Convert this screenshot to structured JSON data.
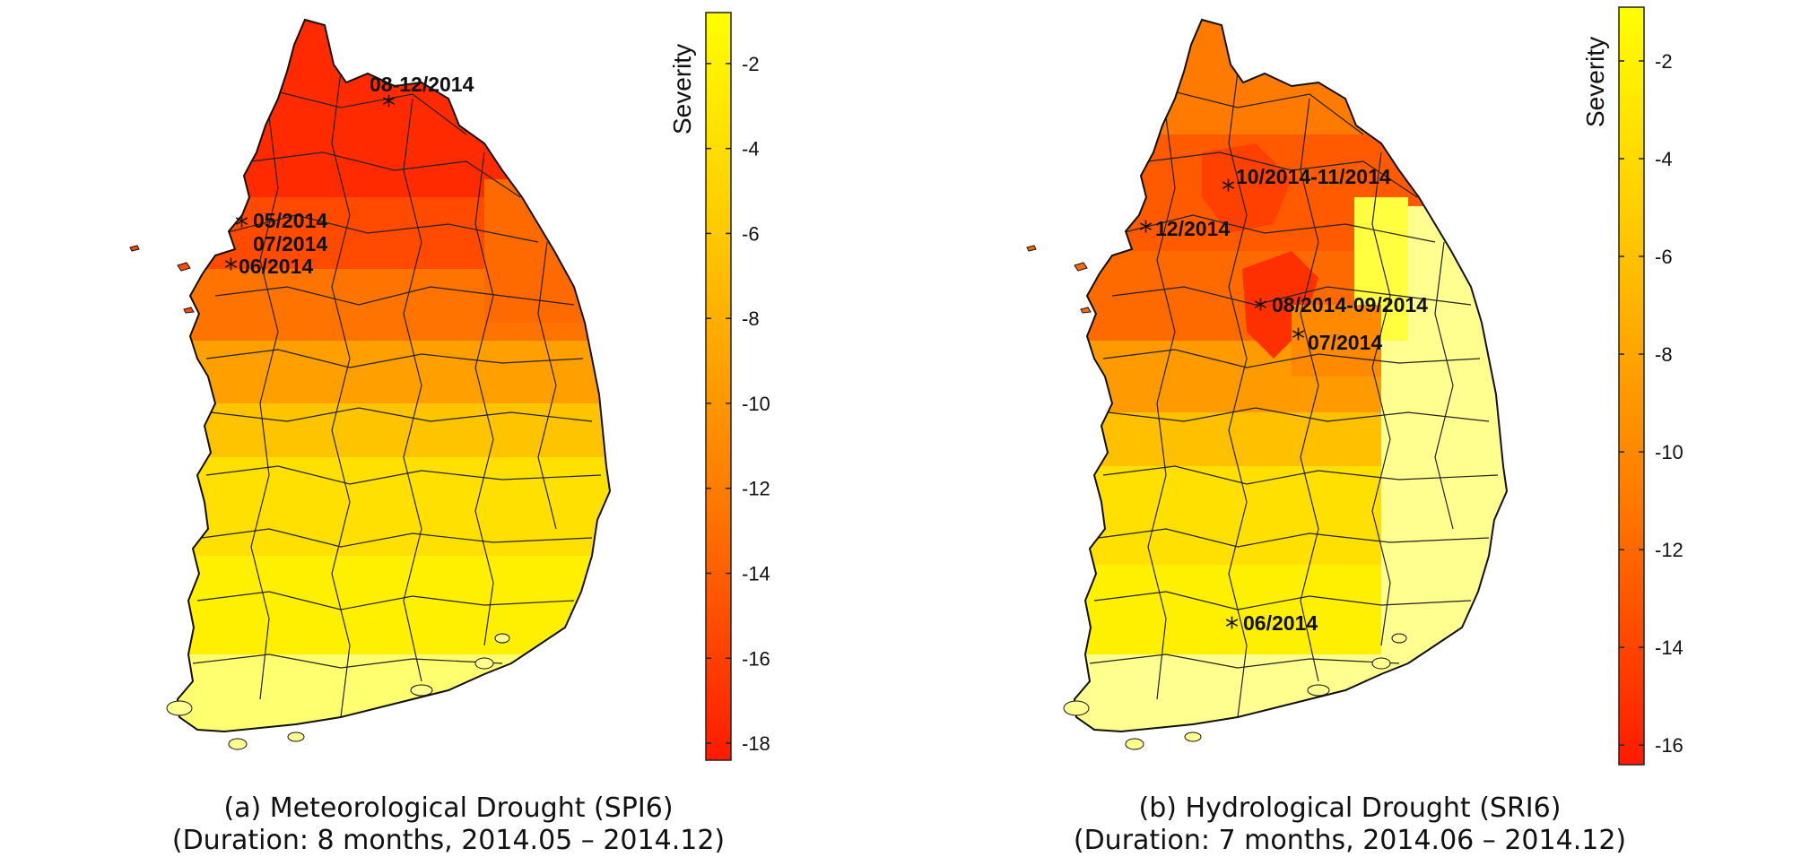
{
  "panels": [
    {
      "id": "a",
      "caption_line1": "(a) Meteorological Drought (SPI6)",
      "caption_line2": "(Duration: 8 months, 2014.05 – 2014.12)",
      "colorbar": {
        "title": "Severity",
        "min": -18.4,
        "max": -0.8,
        "ticks": [
          -2,
          -4,
          -6,
          -8,
          -10,
          -12,
          -14,
          -16,
          -18
        ],
        "tick_labels": [
          "-2",
          "-4",
          "-6",
          "-8",
          "-10",
          "-12",
          "-14",
          "-16",
          "-18"
        ],
        "colors": [
          "#ff1a00",
          "#ff8c00",
          "#ffd400",
          "#ffff00"
        ]
      },
      "markers": [
        {
          "label": "08-12/2014"
        },
        {
          "label": "05/2014"
        },
        {
          "label": "07/2014"
        },
        {
          "label": "06/2014"
        }
      ]
    },
    {
      "id": "b",
      "caption_line1": "(b) Hydrological Drought (SRI6)",
      "caption_line2": "(Duration: 7 months, 2014.06 – 2014.12)",
      "colorbar": {
        "title": "Severity",
        "min": -16.4,
        "max": -0.9,
        "ticks": [
          -2,
          -4,
          -6,
          -8,
          -10,
          -12,
          -14,
          -16
        ],
        "tick_labels": [
          "-2",
          "-4",
          "-6",
          "-8",
          "-10",
          "-12",
          "-14",
          "-16"
        ],
        "colors": [
          "#ff1a00",
          "#ff8c00",
          "#ffd400",
          "#ffff00"
        ]
      },
      "markers": [
        {
          "label": "10/2014-11/2014"
        },
        {
          "label": "12/2014"
        },
        {
          "label": "08/2014-09/2014"
        },
        {
          "label": "07/2014"
        },
        {
          "label": "06/2014"
        }
      ]
    }
  ]
}
